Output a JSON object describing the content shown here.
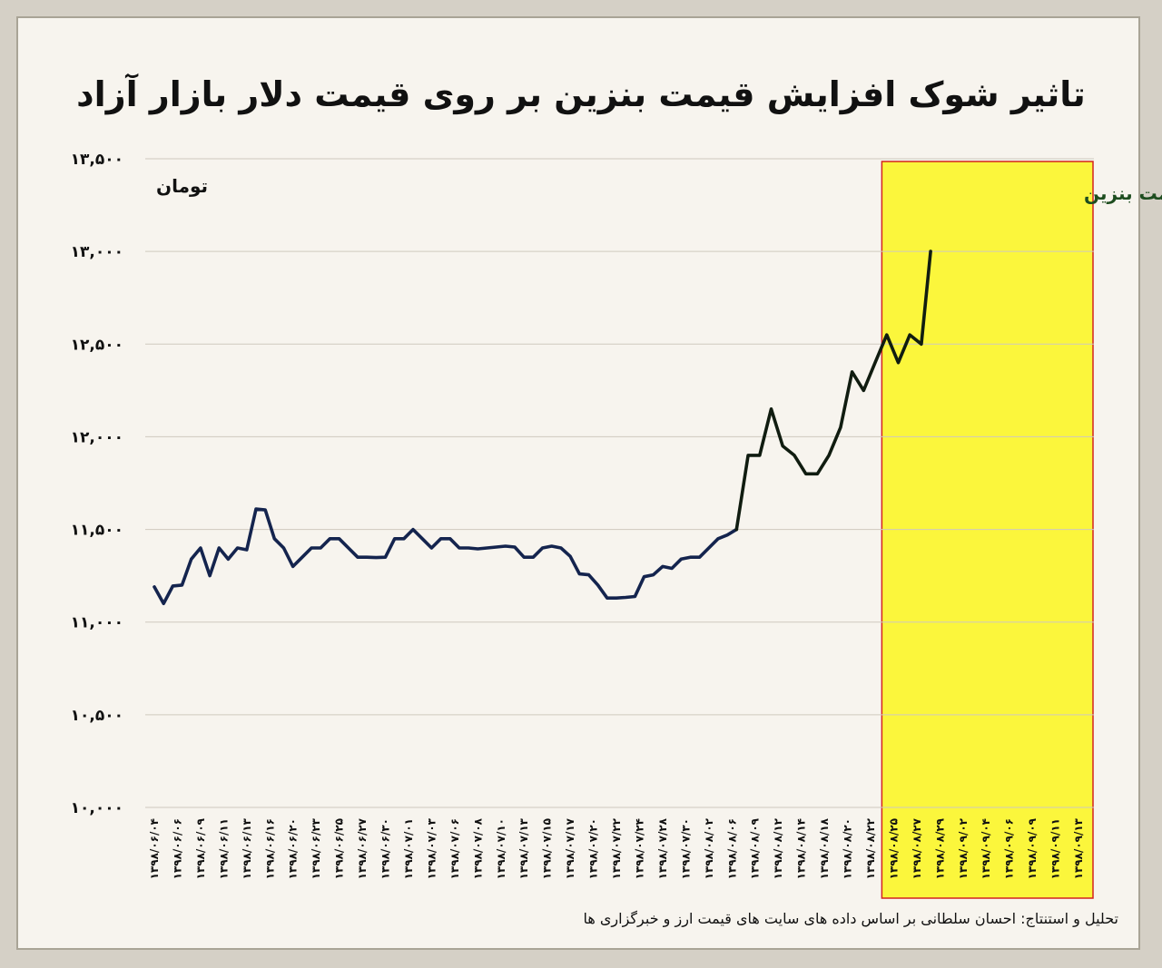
{
  "chart_data": {
    "type": "line",
    "title": "تاثیر شوک افزایش قیمت بنزین بر روی قیمت دلار بازار آزاد",
    "ylabel": "تومان",
    "ylim": [
      10000,
      13500
    ],
    "yticks": [
      "۱۰,۰۰۰",
      "۱۰,۵۰۰",
      "۱۱,۰۰۰",
      "۱۱,۵۰۰",
      "۱۲,۰۰۰",
      "۱۲,۵۰۰",
      "۱۳,۰۰۰",
      "۱۳,۵۰۰"
    ],
    "ytick_values": [
      10000,
      10500,
      11000,
      11500,
      12000,
      12500,
      13000,
      13500
    ],
    "grid": true,
    "categories": [
      "۱۳۹۸/۰۶/۰۴",
      "۱۳۹۸/۰۶/۰۶",
      "۱۳۹۸/۰۶/۰۹",
      "۱۳۹۸/۰۶/۱۱",
      "۱۳۹۸/۰۶/۱۳",
      "۱۳۹۸/۰۶/۱۶",
      "۱۳۹۸/۰۶/۲۰",
      "۱۳۹۸/۰۶/۲۳",
      "۱۳۹۸/۰۶/۲۵",
      "۱۳۹۸/۰۶/۲۷",
      "۱۳۹۸/۰۶/۳۰",
      "۱۳۹۸/۰۷/۰۱",
      "۱۳۹۸/۰۷/۰۳",
      "۱۳۹۸/۰۷/۰۶",
      "۱۳۹۸/۰۷/۰۸",
      "۱۳۹۸/۰۷/۱۰",
      "۱۳۹۸/۰۷/۱۳",
      "۱۳۹۸/۰۷/۱۵",
      "۱۳۹۸/۰۷/۱۷",
      "۱۳۹۸/۰۷/۲۰",
      "۱۳۹۸/۰۷/۲۲",
      "۱۳۹۸/۰۷/۲۴",
      "۱۳۹۸/۰۷/۲۸",
      "۱۳۹۸/۰۷/۳۰",
      "۱۳۹۸/۰۸/۰۲",
      "۱۳۹۸/۰۸/۰۶",
      "۱۳۹۸/۰۸/۰۹",
      "۱۳۹۸/۰۸/۱۲",
      "۱۳۹۸/۰۸/۱۴",
      "۱۳۹۸/۰۸/۱۸",
      "۱۳۹۸/۰۸/۲۰",
      "۱۳۹۸/۰۸/۲۲",
      "۱۳۹۸/۰۸/۲۵",
      "۱۳۹۸/۰۸/۲۷",
      "۱۳۹۸/۰۸/۲۹",
      "۱۳۹۸/۰۹/۰۲",
      "۱۳۹۸/۰۹/۰۴",
      "۱۳۹۸/۰۹/۰۶",
      "۱۳۹۸/۰۹/۰۹",
      "۱۳۹۸/۰۹/۱۱",
      "۱۳۹۸/۰۹/۱۳"
    ],
    "series": [
      {
        "color": "#14244e",
        "points": [
          [
            0,
            11190
          ],
          [
            0.4,
            11100
          ],
          [
            0.8,
            11195
          ],
          [
            1.2,
            11200
          ],
          [
            1.6,
            11340
          ],
          [
            2.0,
            11400
          ],
          [
            2.4,
            11250
          ],
          [
            2.8,
            11400
          ],
          [
            3.2,
            11340
          ],
          [
            3.6,
            11400
          ],
          [
            4.0,
            11390
          ],
          [
            4.4,
            11610
          ],
          [
            4.8,
            11605
          ],
          [
            5.2,
            11450
          ],
          [
            5.6,
            11400
          ],
          [
            6.0,
            11300
          ],
          [
            6.4,
            11350
          ],
          [
            6.8,
            11400
          ],
          [
            7.2,
            11400
          ],
          [
            7.6,
            11450
          ],
          [
            8.0,
            11450
          ],
          [
            8.4,
            11400
          ],
          [
            8.8,
            11350
          ],
          [
            9.2,
            11350
          ],
          [
            9.6,
            11348
          ],
          [
            10.0,
            11350
          ],
          [
            10.4,
            11450
          ],
          [
            10.8,
            11450
          ],
          [
            11.2,
            11500
          ],
          [
            11.6,
            11450
          ],
          [
            12.0,
            11400
          ],
          [
            12.4,
            11450
          ],
          [
            12.8,
            11450
          ],
          [
            13.2,
            11400
          ],
          [
            13.6,
            11400
          ],
          [
            14.0,
            11395
          ],
          [
            14.4,
            11400
          ],
          [
            14.8,
            11405
          ],
          [
            15.2,
            11410
          ],
          [
            15.6,
            11405
          ],
          [
            16.0,
            11350
          ],
          [
            16.4,
            11350
          ],
          [
            16.8,
            11400
          ],
          [
            17.2,
            11410
          ],
          [
            17.6,
            11400
          ],
          [
            18.0,
            11355
          ],
          [
            18.4,
            11260
          ],
          [
            18.8,
            11255
          ],
          [
            19.2,
            11200
          ],
          [
            19.6,
            11130
          ],
          [
            20.0,
            11130
          ],
          [
            20.4,
            11133
          ],
          [
            20.8,
            11138
          ],
          [
            21.2,
            11245
          ],
          [
            21.6,
            11255
          ],
          [
            22.0,
            11300
          ],
          [
            22.4,
            11290
          ],
          [
            22.8,
            11340
          ],
          [
            23.2,
            11350
          ],
          [
            23.6,
            11350
          ],
          [
            24.0,
            11400
          ],
          [
            24.4,
            11450
          ],
          [
            24.8,
            11470
          ],
          [
            25.2,
            11500
          ]
        ]
      },
      {
        "color": "#101c10",
        "points": [
          [
            25.2,
            11500
          ],
          [
            25.7,
            11900
          ],
          [
            26.2,
            11900
          ],
          [
            26.7,
            12150
          ],
          [
            27.2,
            11950
          ],
          [
            27.7,
            11900
          ],
          [
            28.2,
            11800
          ],
          [
            28.7,
            11800
          ],
          [
            29.2,
            11900
          ],
          [
            29.7,
            12050
          ],
          [
            30.2,
            12350
          ],
          [
            30.7,
            12250
          ],
          [
            31.2,
            12400
          ],
          [
            31.7,
            12550
          ],
          [
            32.2,
            12400
          ],
          [
            32.7,
            12550
          ],
          [
            33.2,
            12500
          ],
          [
            33.6,
            13000
          ]
        ]
      }
    ],
    "annotation": {
      "label": "شوک افزایش قیمت بنزین",
      "from_category": "۱۳۹۸/۰۸/۲۵",
      "to_category": "۱۳۹۸/۰۹/۱۳",
      "fill": "#fbf63c",
      "border": "#d4231f"
    },
    "source": "تحلیل و استنتاج: احسان سلطانی بر اساس داده های سایت های قیمت ارز و خبرگزاری ها"
  }
}
